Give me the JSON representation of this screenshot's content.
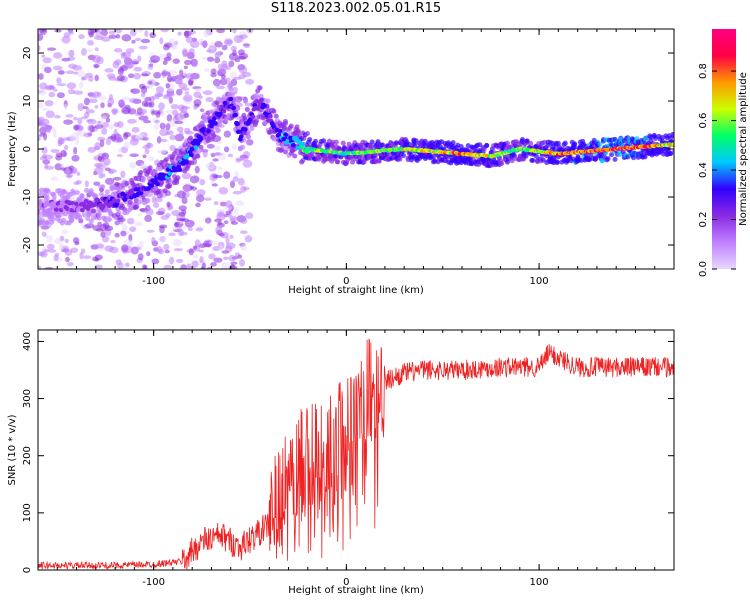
{
  "title": "S118.2023.002.05.01.R15",
  "colors": {
    "snr_line": "#ee2222",
    "colormap": [
      "#e8d8ff",
      "#c080ff",
      "#8a2be2",
      "#3300ff",
      "#00c8ff",
      "#00ff66",
      "#ccff00",
      "#ff9900",
      "#ff0044",
      "#ff0080"
    ]
  },
  "chart_data": [
    {
      "type": "heatmap",
      "xlabel": "Height of straight line (km)",
      "ylabel": "Frequency (Hz)",
      "xlim": [
        -160,
        170
      ],
      "ylim": [
        -25,
        25
      ],
      "x_ticks": [
        -100,
        0,
        100
      ],
      "y_ticks": [
        -20,
        -10,
        0,
        10,
        20
      ],
      "colorbar": {
        "label": "Normalized spectral amplitude",
        "range": [
          0.0,
          0.97
        ],
        "ticks": [
          0.0,
          0.2,
          0.4,
          0.6,
          0.8
        ]
      },
      "ridge": [
        {
          "x": -160,
          "y": -12,
          "amp": 0.15
        },
        {
          "x": -140,
          "y": -12,
          "amp": 0.2
        },
        {
          "x": -120,
          "y": -11,
          "amp": 0.3
        },
        {
          "x": -100,
          "y": -7,
          "amp": 0.35
        },
        {
          "x": -85,
          "y": -3,
          "amp": 0.4
        },
        {
          "x": -75,
          "y": 3,
          "amp": 0.35
        },
        {
          "x": -60,
          "y": 10,
          "amp": 0.3
        },
        {
          "x": -55,
          "y": 3,
          "amp": 0.35
        },
        {
          "x": -45,
          "y": 10,
          "amp": 0.3
        },
        {
          "x": -35,
          "y": 3,
          "amp": 0.35
        },
        {
          "x": -20,
          "y": 0,
          "amp": 0.6
        },
        {
          "x": 0,
          "y": -1,
          "amp": 0.6
        },
        {
          "x": 30,
          "y": 0,
          "amp": 0.7
        },
        {
          "x": 60,
          "y": -1,
          "amp": 0.8
        },
        {
          "x": 75,
          "y": -1.5,
          "amp": 0.7
        },
        {
          "x": 90,
          "y": 0,
          "amp": 0.6
        },
        {
          "x": 110,
          "y": -1,
          "amp": 0.8
        },
        {
          "x": 140,
          "y": 0,
          "amp": 0.95
        },
        {
          "x": 170,
          "y": 1,
          "amp": 0.75
        }
      ]
    },
    {
      "type": "line",
      "xlabel": "Height of straight line (km)",
      "ylabel": "SNR (10 * v/v)",
      "xlim": [
        -160,
        170
      ],
      "ylim": [
        0,
        420
      ],
      "x_ticks": [
        -100,
        0,
        100
      ],
      "y_ticks": [
        0,
        100,
        200,
        300,
        400
      ],
      "series": [
        {
          "x": [
            -160,
            -120,
            -100,
            -85,
            -75,
            -65,
            -55,
            -40,
            -30,
            -20,
            -10,
            0,
            10,
            20,
            30,
            40,
            60,
            80,
            100,
            105,
            120,
            140,
            170
          ],
          "y": [
            8,
            8,
            10,
            15,
            50,
            60,
            40,
            80,
            150,
            190,
            200,
            240,
            300,
            330,
            345,
            350,
            350,
            355,
            355,
            380,
            355,
            355,
            355
          ]
        }
      ]
    }
  ]
}
